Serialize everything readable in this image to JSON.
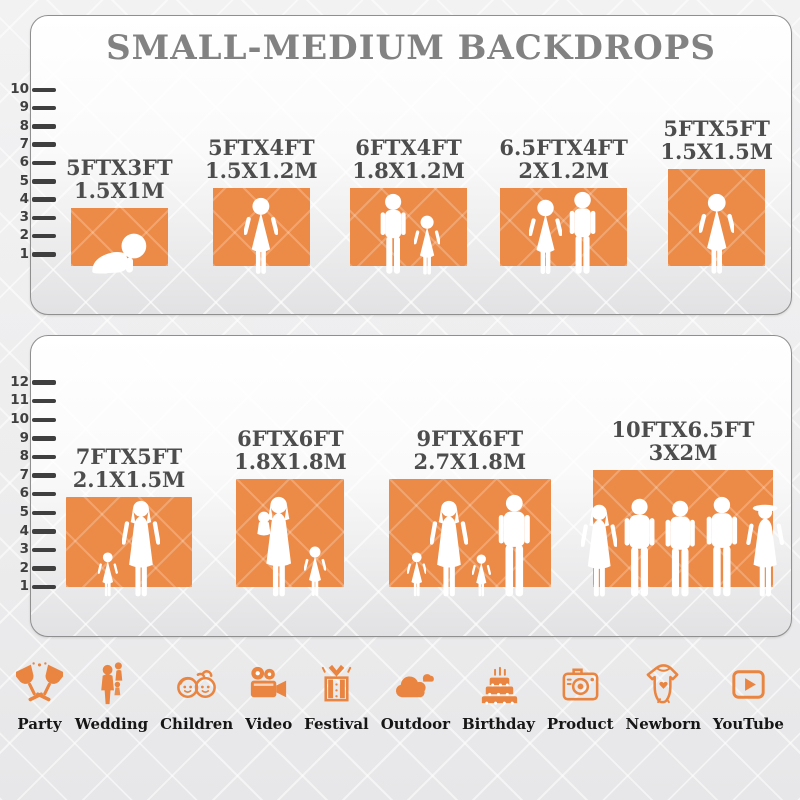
{
  "title": "SMALL-MEDIUM BACKDROPS",
  "colors": {
    "accent": "#EC8A47",
    "icon": "#E98540",
    "title": "#828282",
    "label": "#4D4D4D",
    "ruler": "#3F3F3F",
    "border": "#8F8F8F",
    "category": "#161616"
  },
  "panels": [
    {
      "name": "small-backdrops",
      "ruler": [
        "10",
        "9",
        "8",
        "7",
        "6",
        "5",
        "4",
        "3",
        "2",
        "1"
      ],
      "backdrops": [
        {
          "size_ft": "5FTX3FT",
          "size_m": "1.5X1M",
          "width_ft": 5,
          "height_ft": 3,
          "figures": [
            {
              "type": "crawling-baby",
              "h": 46
            }
          ]
        },
        {
          "size_ft": "5FTX4FT",
          "size_m": "1.5X1.2M",
          "width_ft": 5,
          "height_ft": 4,
          "figures": [
            {
              "type": "girl",
              "h": 80
            }
          ]
        },
        {
          "size_ft": "6FTX4FT",
          "size_m": "1.8X1.2M",
          "width_ft": 6,
          "height_ft": 4,
          "figures": [
            {
              "type": "boy",
              "h": 84
            },
            {
              "type": "girl",
              "h": 62
            }
          ]
        },
        {
          "size_ft": "6.5FTX4FT",
          "size_m": "2X1.2M",
          "width_ft": 6.5,
          "height_ft": 4,
          "figures": [
            {
              "type": "girl",
              "h": 78
            },
            {
              "type": "boy",
              "h": 86
            }
          ]
        },
        {
          "size_ft": "5FTX5FT",
          "size_m": "1.5X1.5M",
          "width_ft": 5,
          "height_ft": 5,
          "figures": [
            {
              "type": "girl",
              "h": 84
            }
          ]
        }
      ]
    },
    {
      "name": "medium-backdrops",
      "ruler": [
        "12",
        "11",
        "10",
        "9",
        "8",
        "7",
        "6",
        "5",
        "4",
        "3",
        "2",
        "1"
      ],
      "backdrops": [
        {
          "size_ft": "7FTX5FT",
          "size_m": "2.1X1.5M",
          "width_ft": 7,
          "height_ft": 5,
          "figures": [
            {
              "type": "girl",
              "h": 46
            },
            {
              "type": "woman",
              "h": 98
            }
          ]
        },
        {
          "size_ft": "6FTX6FT",
          "size_m": "1.8X1.8M",
          "width_ft": 6,
          "height_ft": 6,
          "figures": [
            {
              "type": "woman-holding-baby",
              "h": 102
            },
            {
              "type": "girl",
              "h": 52
            }
          ]
        },
        {
          "size_ft": "9FTX6FT",
          "size_m": "2.7X1.8M",
          "width_ft": 9,
          "height_ft": 6,
          "figures": [
            {
              "type": "girl",
              "h": 46
            },
            {
              "type": "woman",
              "h": 98
            },
            {
              "type": "girl",
              "h": 44
            },
            {
              "type": "man",
              "h": 104
            }
          ]
        },
        {
          "size_ft": "10FTX6.5FT",
          "size_m": "3X2M",
          "width_ft": 10,
          "height_ft": 6.5,
          "figures": [
            {
              "type": "woman",
              "h": 94
            },
            {
              "type": "man",
              "h": 100
            },
            {
              "type": "man",
              "h": 98
            },
            {
              "type": "man",
              "h": 102
            },
            {
              "type": "woman-hat",
              "h": 96
            }
          ]
        }
      ]
    }
  ],
  "categories": [
    {
      "label": "Party",
      "icon": "party-glasses-icon"
    },
    {
      "label": "Wedding",
      "icon": "wedding-couple-icon"
    },
    {
      "label": "Children",
      "icon": "children-faces-icon"
    },
    {
      "label": "Video",
      "icon": "video-camera-icon"
    },
    {
      "label": "Festival",
      "icon": "gift-box-icon"
    },
    {
      "label": "Outdoor",
      "icon": "clouds-icon"
    },
    {
      "label": "Birthday",
      "icon": "birthday-cake-icon"
    },
    {
      "label": "Product",
      "icon": "photo-camera-icon"
    },
    {
      "label": "Newborn",
      "icon": "baby-onesie-icon"
    },
    {
      "label": "YouTube",
      "icon": "youtube-play-icon"
    }
  ]
}
